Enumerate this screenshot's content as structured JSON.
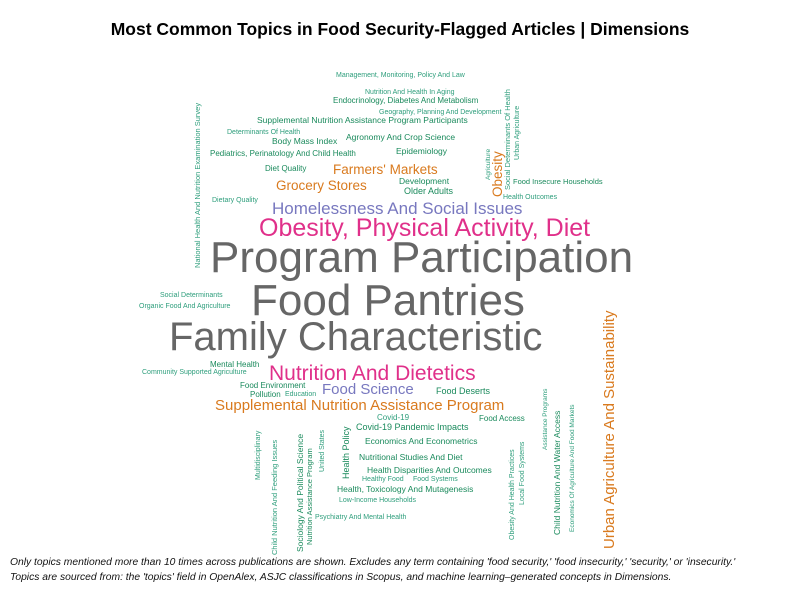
{
  "chart_data": {
    "type": "wordcloud",
    "title": "Most Common Topics in Food Security-Flagged Articles | Dimensions",
    "colors": {
      "grey": "#666666",
      "pink": "#e0308a",
      "orange": "#d97a1e",
      "purple": "#7878bf",
      "teal": "#2e9e7c",
      "dark_green": "#1a8a5c"
    },
    "words": [
      {
        "text": "Program Participation",
        "color": "grey"
      },
      {
        "text": "Food Pantries",
        "color": "grey"
      },
      {
        "text": "Family Characteristic",
        "color": "grey"
      },
      {
        "text": "Obesity, Physical Activity, Diet",
        "color": "pink"
      },
      {
        "text": "Nutrition And Dietetics",
        "color": "pink"
      },
      {
        "text": "Homelessness And Social Issues",
        "color": "purple"
      },
      {
        "text": "Food Science",
        "color": "purple"
      },
      {
        "text": "Supplemental Nutrition Assistance Program",
        "color": "orange"
      },
      {
        "text": "Urban Agriculture And Sustainability",
        "color": "orange"
      },
      {
        "text": "Grocery Stores",
        "color": "orange"
      },
      {
        "text": "Farmers' Markets",
        "color": "orange"
      },
      {
        "text": "Obesity",
        "color": "orange"
      },
      {
        "text": "Management, Monitoring, Policy And Law",
        "color": "teal"
      },
      {
        "text": "Nutrition And Health In Aging",
        "color": "teal"
      },
      {
        "text": "Endocrinology, Diabetes And Metabolism",
        "color": "dark_green"
      },
      {
        "text": "Geography, Planning And Development",
        "color": "teal"
      },
      {
        "text": "Supplemental Nutrition Assistance Program Participants",
        "color": "dark_green"
      },
      {
        "text": "Determinants Of Health",
        "color": "teal"
      },
      {
        "text": "Agronomy And Crop Science",
        "color": "dark_green"
      },
      {
        "text": "Body Mass Index",
        "color": "dark_green"
      },
      {
        "text": "Pediatrics, Perinatology And Child Health",
        "color": "dark_green"
      },
      {
        "text": "Epidemiology",
        "color": "dark_green"
      },
      {
        "text": "Diet Quality",
        "color": "dark_green"
      },
      {
        "text": "Development",
        "color": "dark_green"
      },
      {
        "text": "Older Adults",
        "color": "dark_green"
      },
      {
        "text": "Food Insecure Households",
        "color": "dark_green"
      },
      {
        "text": "Health Outcomes",
        "color": "teal"
      },
      {
        "text": "Dietary Quality",
        "color": "teal"
      },
      {
        "text": "National Health And Nutrition Examination Survey",
        "color": "teal"
      },
      {
        "text": "Social Determinants Of Health",
        "color": "teal"
      },
      {
        "text": "Urban Agriculture",
        "color": "teal"
      },
      {
        "text": "Agriculture",
        "color": "teal"
      },
      {
        "text": "Social Determinants",
        "color": "teal"
      },
      {
        "text": "Organic Food And Agriculture",
        "color": "teal"
      },
      {
        "text": "Mental Health",
        "color": "dark_green"
      },
      {
        "text": "Community Supported Agriculture",
        "color": "teal"
      },
      {
        "text": "Food Environment",
        "color": "dark_green"
      },
      {
        "text": "Pollution",
        "color": "dark_green"
      },
      {
        "text": "Education",
        "color": "teal"
      },
      {
        "text": "Food Deserts",
        "color": "dark_green"
      },
      {
        "text": "Food Access",
        "color": "dark_green"
      },
      {
        "text": "Covid-19",
        "color": "teal"
      },
      {
        "text": "Covid-19 Pandemic Impacts",
        "color": "dark_green"
      },
      {
        "text": "Economics And Econometrics",
        "color": "dark_green"
      },
      {
        "text": "Nutritional Studies And Diet",
        "color": "dark_green"
      },
      {
        "text": "Health Disparities And Outcomes",
        "color": "dark_green"
      },
      {
        "text": "Healthy Food",
        "color": "teal"
      },
      {
        "text": "Food Systems",
        "color": "teal"
      },
      {
        "text": "Health, Toxicology And Mutagenesis",
        "color": "dark_green"
      },
      {
        "text": "Low-Income Households",
        "color": "teal"
      },
      {
        "text": "Psychiatry And Mental Health",
        "color": "teal"
      },
      {
        "text": "Health Policy",
        "color": "dark_green"
      },
      {
        "text": "Multidisciplinary",
        "color": "teal"
      },
      {
        "text": "Child Nutrition And Feeding Issues",
        "color": "teal"
      },
      {
        "text": "Sociology And Political Science",
        "color": "dark_green"
      },
      {
        "text": "Nutrition Assistance Program",
        "color": "dark_green"
      },
      {
        "text": "United States",
        "color": "teal"
      },
      {
        "text": "Obesity And Health Practices",
        "color": "teal"
      },
      {
        "text": "Local Food Systems",
        "color": "teal"
      },
      {
        "text": "Child Nutrition And Water Access",
        "color": "dark_green"
      },
      {
        "text": "Assistance Programs",
        "color": "teal"
      },
      {
        "text": "Economics Of Agriculture And Food Markets",
        "color": "teal"
      }
    ]
  },
  "captions": {
    "line1": "Only topics mentioned more than 10 times across publications are shown. Excludes any term containing 'food security,' 'food insecurity,' 'security,' or 'insecurity.'",
    "line2": "Topics are sourced from: the 'topics' field in OpenAlex, ASJC classifications in Scopus, and machine learning–generated concepts in Dimensions."
  }
}
